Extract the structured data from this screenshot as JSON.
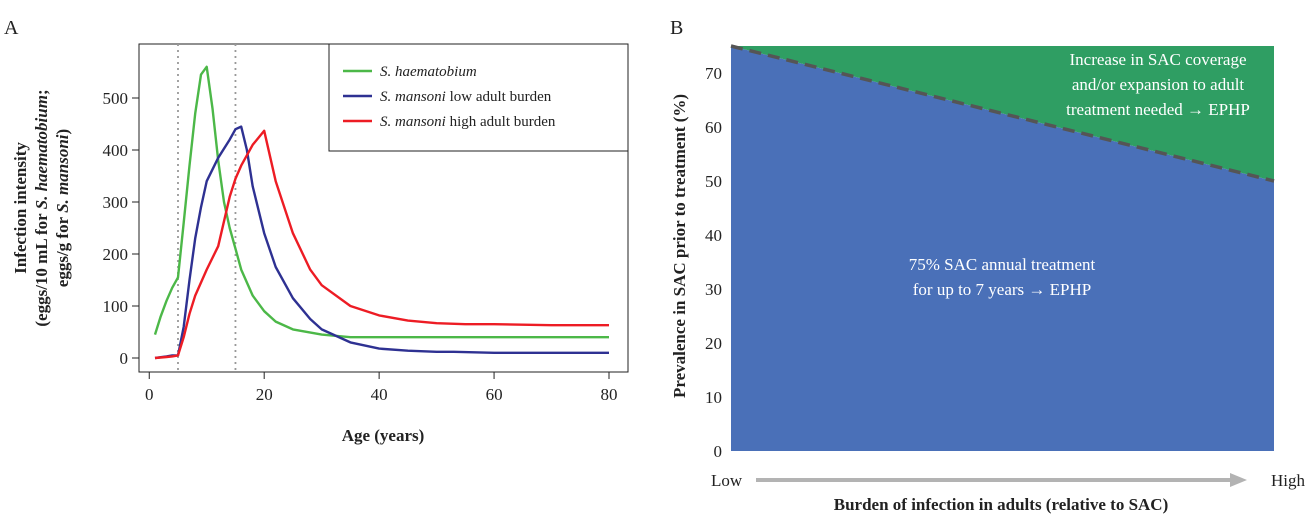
{
  "chart_data": [
    {
      "panel": "A",
      "type": "line",
      "xlabel": "Age (years)",
      "ylabel_line1": "Infection intensity",
      "ylabel_line2_parts": [
        "(eggs/10 mL for ",
        "S. haematobium",
        ";"
      ],
      "ylabel_line3_parts": [
        "eggs/g for ",
        "S. mansoni",
        ")"
      ],
      "xlim": [
        0,
        82
      ],
      "ylim": [
        -20,
        580
      ],
      "xticks": [
        0,
        20,
        40,
        60,
        80
      ],
      "yticks": [
        0,
        100,
        200,
        300,
        400,
        500
      ],
      "vlines": [
        5,
        15
      ],
      "series": [
        {
          "name_italic": "S. haematobium",
          "name_rest": "",
          "color": "#4cb848",
          "x": [
            1,
            2,
            3,
            4,
            5,
            6,
            7,
            8,
            9,
            10,
            11,
            12,
            13,
            14,
            15,
            16,
            18,
            20,
            22,
            25,
            30,
            35,
            40,
            50,
            60,
            70,
            80
          ],
          "y": [
            45,
            80,
            110,
            135,
            155,
            260,
            370,
            470,
            545,
            560,
            480,
            380,
            300,
            250,
            210,
            170,
            120,
            90,
            70,
            55,
            45,
            40,
            40,
            40,
            40,
            40,
            40
          ]
        },
        {
          "name_italic": "S. mansoni",
          "name_rest": " low adult burden",
          "color": "#2e3192",
          "x": [
            1,
            3,
            4,
            5,
            6,
            7,
            8,
            9,
            10,
            12,
            14,
            15,
            16,
            17,
            18,
            20,
            22,
            25,
            28,
            30,
            35,
            40,
            45,
            50,
            53,
            60,
            70,
            80
          ],
          "y": [
            0,
            3,
            5,
            5,
            60,
            150,
            230,
            290,
            340,
            385,
            420,
            440,
            445,
            400,
            330,
            240,
            175,
            115,
            75,
            55,
            30,
            18,
            14,
            12,
            12,
            10,
            10,
            10
          ]
        },
        {
          "name_italic": "S. mansoni",
          "name_rest": " high adult burden",
          "color": "#ed1c24",
          "x": [
            1,
            3,
            4,
            5,
            6,
            7,
            8,
            10,
            12,
            14,
            15,
            16,
            18,
            20,
            22,
            25,
            28,
            30,
            35,
            40,
            45,
            50,
            55,
            60,
            70,
            80
          ],
          "y": [
            0,
            2,
            3,
            5,
            40,
            85,
            120,
            170,
            215,
            310,
            345,
            370,
            410,
            437,
            340,
            240,
            170,
            140,
            100,
            82,
            72,
            67,
            65,
            65,
            63,
            63
          ]
        }
      ]
    },
    {
      "panel": "B",
      "type": "area",
      "ylabel": "Prevalence in SAC prior to treatment (%)",
      "xlabel": "Burden of infection in adults (relative to SAC)",
      "ylim": [
        0,
        75
      ],
      "yticks": [
        0,
        10,
        20,
        30,
        40,
        50,
        60,
        70
      ],
      "x_low_label": "Low",
      "x_high_label": "High",
      "boundary": {
        "low_y": 75,
        "high_y": 50
      },
      "regions": [
        {
          "lines": [
            "75% SAC annual treatment",
            "for up to 7 years → EPHP"
          ],
          "color": "#4a70b8"
        },
        {
          "lines": [
            "Increase in SAC coverage",
            "and/or expansion to adult",
            "treatment needed → EPHP"
          ],
          "color": "#2f9e63"
        }
      ]
    }
  ]
}
